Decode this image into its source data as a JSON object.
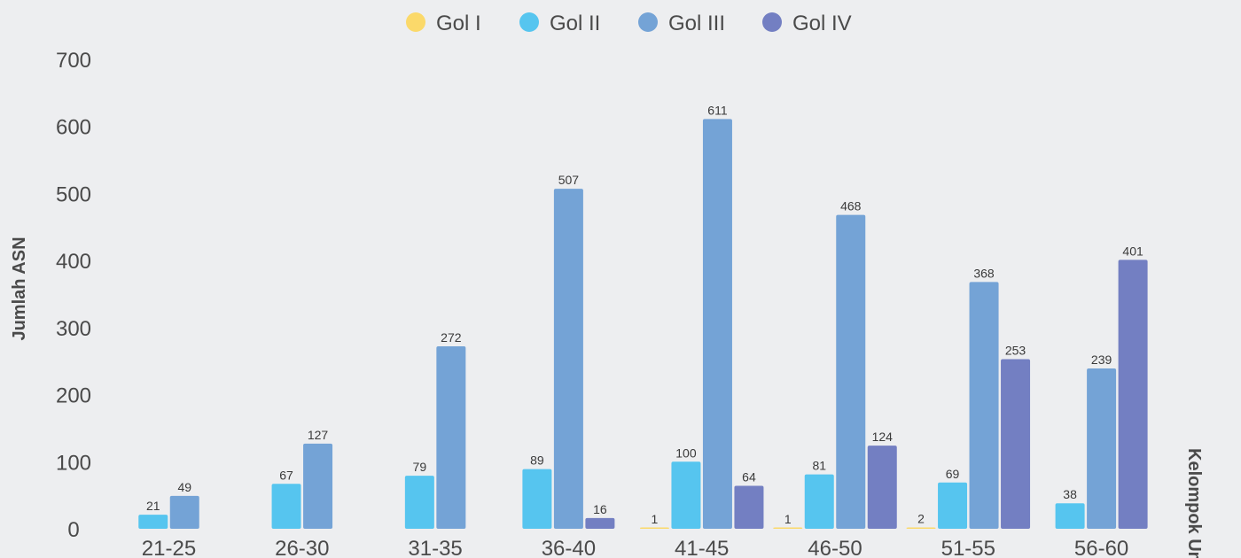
{
  "chart_data": {
    "type": "bar",
    "categories": [
      "21-25",
      "26-30",
      "31-35",
      "36-40",
      "41-45",
      "46-50",
      "51-55",
      "56-60"
    ],
    "series": [
      {
        "name": "Gol I",
        "color": "#fbd96a",
        "values": [
          null,
          null,
          null,
          null,
          1,
          1,
          2,
          null
        ]
      },
      {
        "name": "Gol II",
        "color": "#56c5ef",
        "values": [
          21,
          67,
          79,
          89,
          100,
          81,
          69,
          38
        ]
      },
      {
        "name": "Gol III",
        "color": "#74a3d6",
        "values": [
          49,
          127,
          272,
          507,
          611,
          468,
          368,
          239
        ]
      },
      {
        "name": "Gol IV",
        "color": "#737fc2",
        "values": [
          null,
          null,
          null,
          16,
          64,
          124,
          253,
          401
        ]
      }
    ],
    "ylabel": "Jumlah ASN",
    "xlabel": "Kelompok Umur",
    "ylim": [
      0,
      700
    ],
    "yticks": [
      0,
      100,
      200,
      300,
      400,
      500,
      600,
      700
    ],
    "legend_position": "top-center",
    "grid": false
  }
}
